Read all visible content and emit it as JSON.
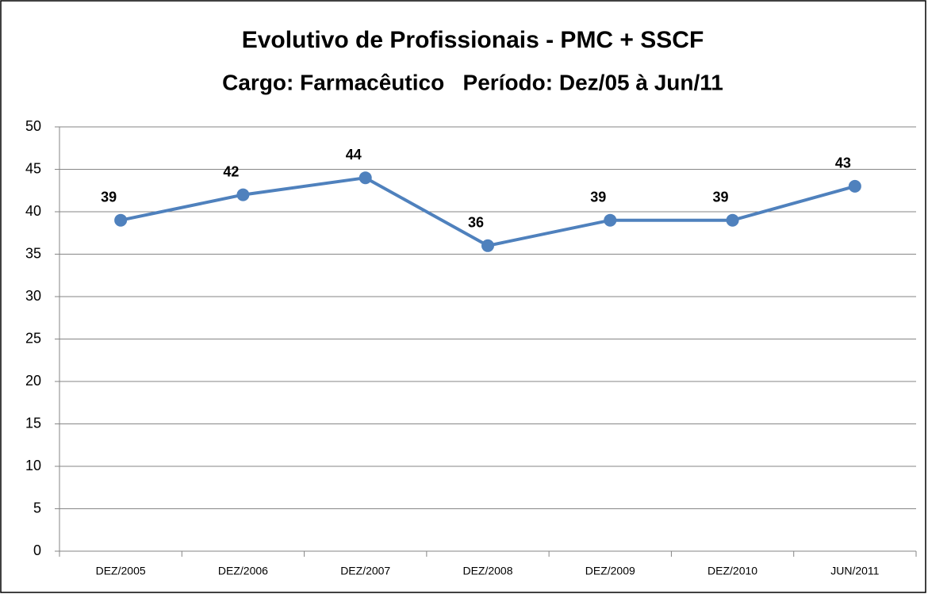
{
  "chart_data": {
    "type": "line",
    "title": "Evolutivo de Profissionais - PMC + SSCF",
    "subtitle": "Cargo: Farmacêutico   Período: Dez/05 à Jun/11",
    "categories": [
      "DEZ/2005",
      "DEZ/2006",
      "DEZ/2007",
      "DEZ/2008",
      "DEZ/2009",
      "DEZ/2010",
      "JUN/2011"
    ],
    "values": [
      39,
      42,
      44,
      36,
      39,
      39,
      43
    ],
    "color": "#4f81bd",
    "ylim": [
      0,
      50
    ],
    "yticks": [
      0,
      5,
      10,
      15,
      20,
      25,
      30,
      35,
      40,
      45,
      50
    ],
    "grid": true
  }
}
